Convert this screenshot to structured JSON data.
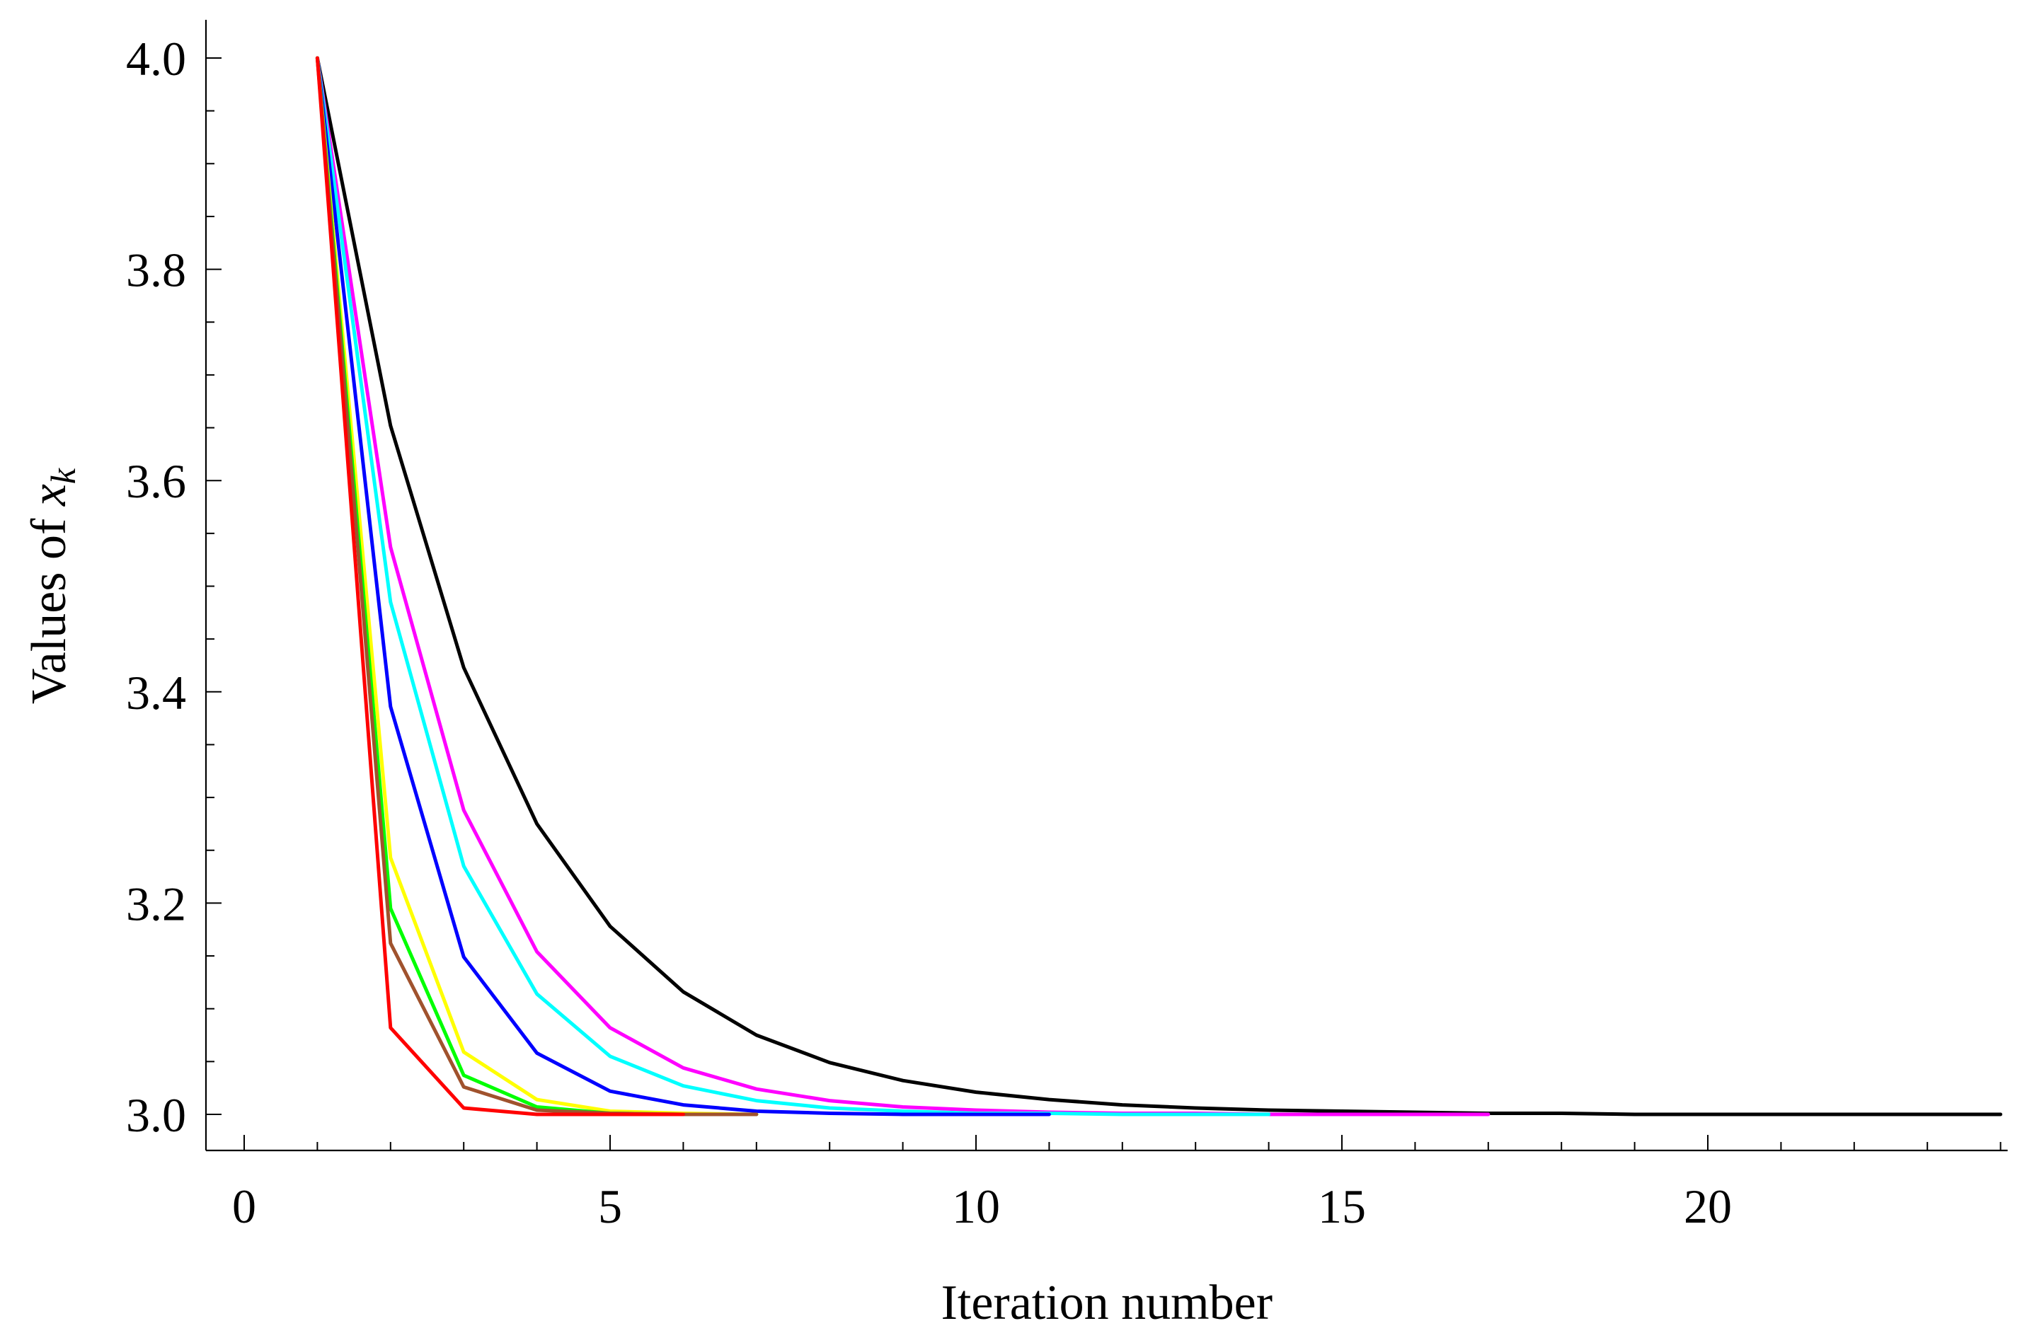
{
  "chart_data": {
    "type": "line",
    "title": "",
    "xlabel": "Iteration number",
    "ylabel_prefix": "Values of ",
    "ylabel_var": "x",
    "ylabel_sub": "k",
    "xlim": [
      0,
      24
    ],
    "ylim": [
      3.0,
      4.0
    ],
    "xticks": [
      0,
      5,
      10,
      15,
      20
    ],
    "xtick_labels": [
      "0",
      "5",
      "10",
      "15",
      "20"
    ],
    "yticks": [
      3.0,
      3.2,
      3.4,
      3.6,
      3.8,
      4.0
    ],
    "ytick_labels": [
      "3.0",
      "3.2",
      "3.4",
      "3.6",
      "3.8",
      "4.0"
    ],
    "grid": false,
    "legend": "none",
    "series": [
      {
        "color": "#000000",
        "x": [
          1,
          2,
          3,
          4,
          5,
          6,
          7,
          8,
          9,
          10,
          11,
          12,
          13,
          14,
          15,
          16,
          17,
          18,
          19,
          20,
          21,
          22,
          23,
          24
        ],
        "values": [
          4.0,
          3.652,
          3.423,
          3.275,
          3.178,
          3.116,
          3.075,
          3.049,
          3.032,
          3.021,
          3.014,
          3.009,
          3.006,
          3.004,
          3.003,
          3.002,
          3.001,
          3.001,
          3.0,
          3.0,
          3.0,
          3.0,
          3.0,
          3.0
        ]
      },
      {
        "color": "#ff00ff",
        "x": [
          1,
          2,
          3,
          4,
          5,
          6,
          7,
          8,
          9,
          10,
          11,
          12,
          13,
          14,
          15,
          16,
          17
        ],
        "values": [
          4.0,
          3.537,
          3.288,
          3.154,
          3.082,
          3.044,
          3.024,
          3.013,
          3.007,
          3.004,
          3.002,
          3.001,
          3.001,
          3.0,
          3.0,
          3.0,
          3.0
        ]
      },
      {
        "color": "#00ffff",
        "x": [
          1,
          2,
          3,
          4,
          5,
          6,
          7,
          8,
          9,
          10,
          11,
          12,
          13,
          14
        ],
        "values": [
          4.0,
          3.485,
          3.235,
          3.114,
          3.055,
          3.027,
          3.013,
          3.006,
          3.003,
          3.001,
          3.001,
          3.0,
          3.0,
          3.0
        ]
      },
      {
        "color": "#0000ff",
        "x": [
          1,
          2,
          3,
          4,
          5,
          6,
          7,
          8,
          9,
          10,
          11
        ],
        "values": [
          4.0,
          3.386,
          3.149,
          3.058,
          3.022,
          3.009,
          3.003,
          3.001,
          3.0,
          3.0,
          3.0
        ]
      },
      {
        "color": "#ffff00",
        "x": [
          1,
          2,
          3,
          4,
          5,
          6,
          7
        ],
        "values": [
          4.0,
          3.243,
          3.059,
          3.014,
          3.003,
          3.001,
          3.0
        ]
      },
      {
        "color": "#00ff00",
        "x": [
          1,
          2,
          3,
          4,
          5,
          6,
          7
        ],
        "values": [
          4.0,
          3.195,
          3.037,
          3.007,
          3.001,
          3.0,
          3.0
        ]
      },
      {
        "color": "#a0522d",
        "x": [
          1,
          2,
          3,
          4,
          5,
          6,
          7
        ],
        "values": [
          4.0,
          3.162,
          3.026,
          3.004,
          3.001,
          3.0,
          3.0
        ]
      },
      {
        "color": "#ff0000",
        "x": [
          1,
          2,
          3,
          4,
          5,
          6
        ],
        "values": [
          4.0,
          3.082,
          3.006,
          3.0,
          3.0,
          3.0
        ]
      }
    ]
  }
}
